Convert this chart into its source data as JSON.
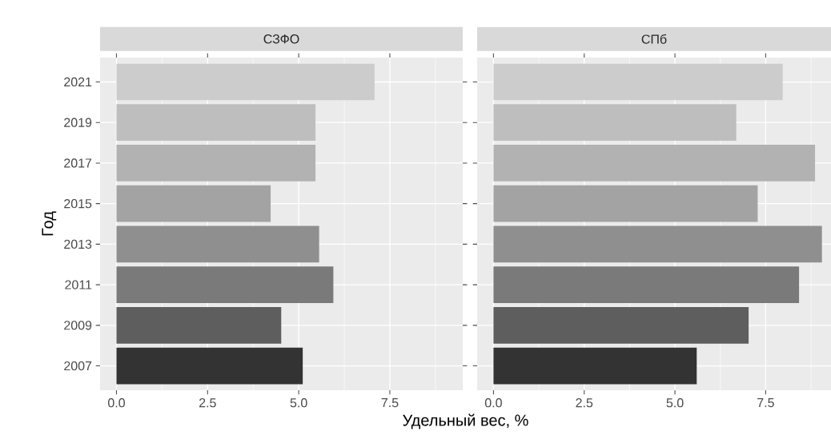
{
  "chart_data": [
    {
      "type": "bar",
      "orientation": "horizontal",
      "title": "СЗФО",
      "xlabel": "Удельный вес, %",
      "ylabel": "Год",
      "categories": [
        "2021",
        "2019",
        "2017",
        "2015",
        "2013",
        "2011",
        "2009",
        "2007"
      ],
      "values": [
        7.08,
        5.46,
        5.46,
        4.23,
        5.56,
        5.95,
        4.52,
        5.11
      ],
      "colors": [
        "#cccccc",
        "#bebebe",
        "#b2b2b2",
        "#a3a3a3",
        "#8f8f8f",
        "#7a7a7a",
        "#5e5e5e",
        "#333333"
      ],
      "xlim": [
        -0.45,
        9.5
      ],
      "xticks": [
        {
          "value": 0,
          "label": "0.0"
        },
        {
          "value": 2.5,
          "label": "2.5"
        },
        {
          "value": 5,
          "label": "5.0"
        },
        {
          "value": 7.5,
          "label": "7.5"
        }
      ],
      "grid": true
    },
    {
      "type": "bar",
      "orientation": "horizontal",
      "title": "СПб",
      "categories": [
        "2021",
        "2019",
        "2017",
        "2015",
        "2013",
        "2011",
        "2009",
        "2007"
      ],
      "values": [
        7.97,
        6.69,
        8.86,
        7.28,
        9.05,
        8.42,
        7.03,
        5.6
      ],
      "colors": [
        "#cccccc",
        "#bebebe",
        "#b2b2b2",
        "#a3a3a3",
        "#8f8f8f",
        "#7a7a7a",
        "#5e5e5e",
        "#333333"
      ],
      "xlim": [
        -0.45,
        9.3
      ],
      "xticks": [
        {
          "value": 0,
          "label": "0.0"
        },
        {
          "value": 2.5,
          "label": "2.5"
        },
        {
          "value": 5,
          "label": "5.0"
        },
        {
          "value": 7.5,
          "label": "7.5"
        }
      ],
      "grid": true,
      "tick_labels": "x"
    }
  ]
}
